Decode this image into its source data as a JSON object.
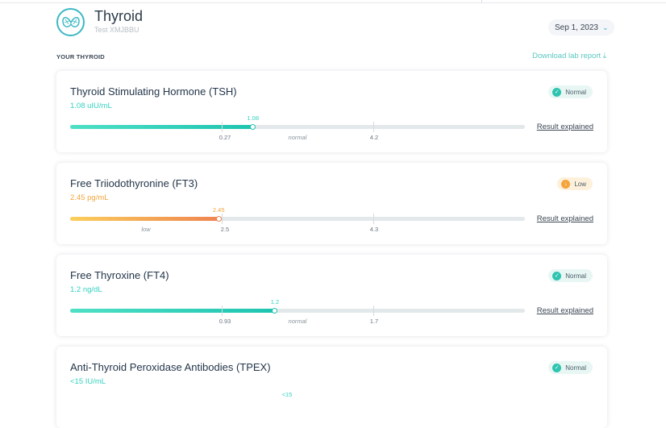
{
  "header": {
    "title": "Thyroid",
    "subtitle": "Test XMJBBU",
    "date": "Sep 1, 2023",
    "section": "YOUR THYROID",
    "download": "Download lab report",
    "download_icon": "⤓"
  },
  "colors": {
    "teal": "#33d1bf",
    "normal_badge": "#e8f7f4",
    "low_badge": "#fdf1dc",
    "low": "#f4a43a"
  },
  "results": [
    {
      "name": "Thyroid Stimulating Hormone (TSH)",
      "value_text": "1.08 uIU/mL",
      "value": 1.08,
      "value_label": "1.08",
      "status": "Normal",
      "low": 0.27,
      "high": 4.2,
      "low_label": "0.27",
      "high_label": "4.2",
      "zone_label": "normal",
      "link": "Result explained"
    },
    {
      "name": "Free Triiodothyronine (FT3)",
      "value_text": "2.45 pg/mL",
      "value": 2.45,
      "value_label": "2.45",
      "status": "Low",
      "low": 2.5,
      "high": 4.3,
      "low_label": "2.5",
      "high_label": "4.3",
      "zone_label": "low",
      "link": "Result explained"
    },
    {
      "name": "Free Thyroxine (FT4)",
      "value_text": "1.2 ng/dL",
      "value": 1.2,
      "value_label": "1.2",
      "status": "Normal",
      "low": 0.93,
      "high": 1.7,
      "low_label": "0.93",
      "high_label": "1.7",
      "zone_label": "normal",
      "link": "Result explained"
    },
    {
      "name": "Anti-Thyroid Peroxidase Antibodies (TPEX)",
      "value_text": "<15 IU/mL",
      "value_label": "<15",
      "status": "Normal"
    }
  ]
}
